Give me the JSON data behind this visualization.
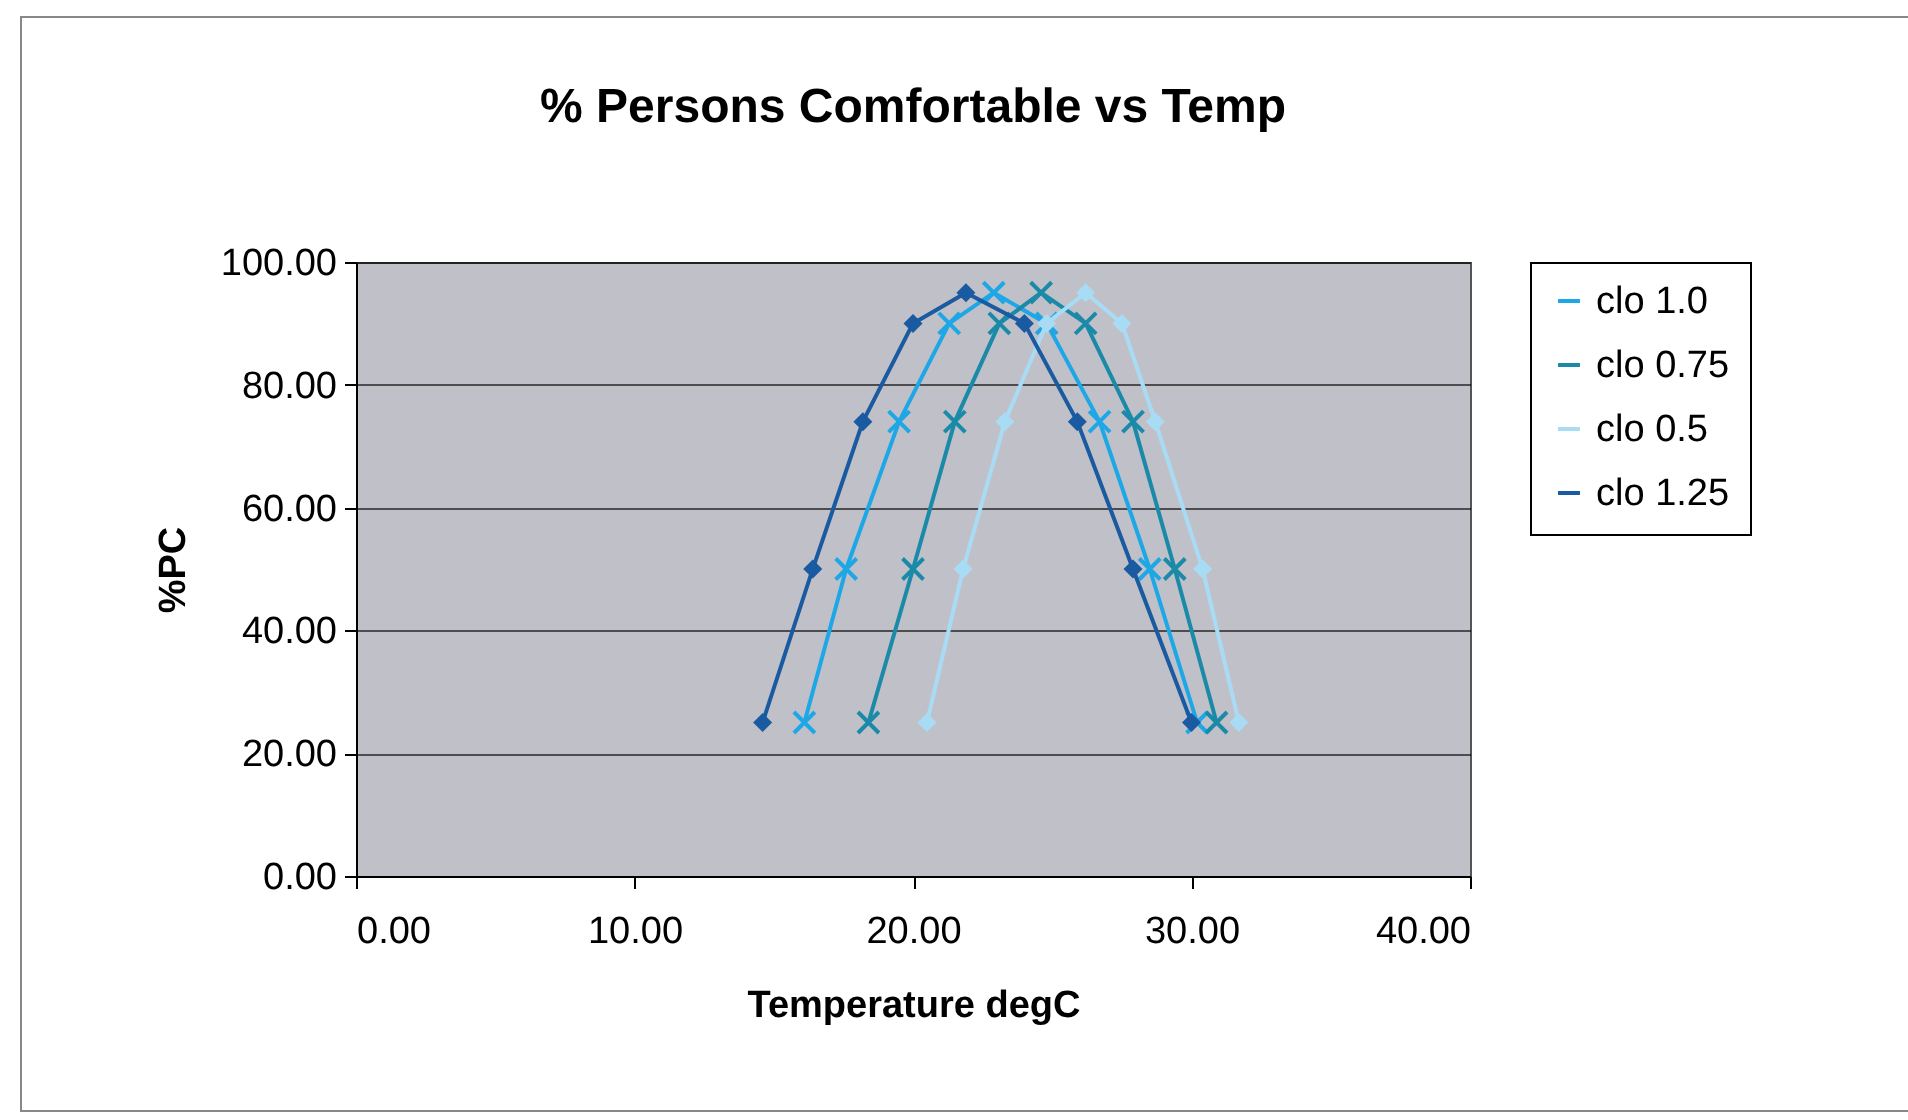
{
  "chart_data": {
    "type": "line",
    "title": "% Persons Comfortable vs Temp",
    "xlabel": "Temperature degC",
    "ylabel": "%PC",
    "xlim": [
      0,
      40
    ],
    "xticks": [
      {
        "value": 0,
        "label": "0.00"
      },
      {
        "value": 10,
        "label": "10.00"
      },
      {
        "value": 20,
        "label": "20.00"
      },
      {
        "value": 30,
        "label": "30.00"
      },
      {
        "value": 40,
        "label": "40.00"
      }
    ],
    "ylim": [
      0,
      100
    ],
    "yticks": [
      {
        "value": 0,
        "label": "0.00"
      },
      {
        "value": 20,
        "label": "20.00"
      },
      {
        "value": 40,
        "label": "40.00"
      },
      {
        "value": 60,
        "label": "60.00"
      },
      {
        "value": 80,
        "label": "80.00"
      },
      {
        "value": 100,
        "label": "100.00"
      }
    ],
    "grid": "y",
    "legend": "right",
    "series": [
      {
        "name": "clo 1.0",
        "color": "#1ea7e6",
        "marker": "cross",
        "x": [
          16.1,
          17.6,
          19.5,
          21.3,
          22.9,
          24.8,
          26.7,
          28.5,
          30.2
        ],
        "values": [
          25,
          50,
          74,
          90,
          95,
          90,
          74,
          50,
          25
        ]
      },
      {
        "name": "clo 0.75",
        "color": "#1a8aa8",
        "marker": "cross",
        "x": [
          18.4,
          20.0,
          21.5,
          23.1,
          24.6,
          26.2,
          27.9,
          29.4,
          30.9
        ],
        "values": [
          25,
          50,
          74,
          90,
          95,
          90,
          74,
          50,
          25
        ]
      },
      {
        "name": "clo 0.5",
        "color": "#a8dcf5",
        "marker": "diamond",
        "x": [
          20.5,
          21.8,
          23.3,
          24.8,
          26.2,
          27.5,
          28.7,
          30.4,
          31.7
        ],
        "values": [
          25,
          50,
          74,
          90,
          95,
          90,
          74,
          50,
          25
        ]
      },
      {
        "name": "clo 1.25",
        "color": "#1a5aa0",
        "marker": "diamond",
        "x": [
          14.6,
          16.4,
          18.2,
          20.0,
          21.9,
          24.0,
          25.9,
          27.9,
          30.0
        ],
        "values": [
          25,
          50,
          74,
          90,
          95,
          90,
          74,
          50,
          25
        ]
      }
    ]
  }
}
